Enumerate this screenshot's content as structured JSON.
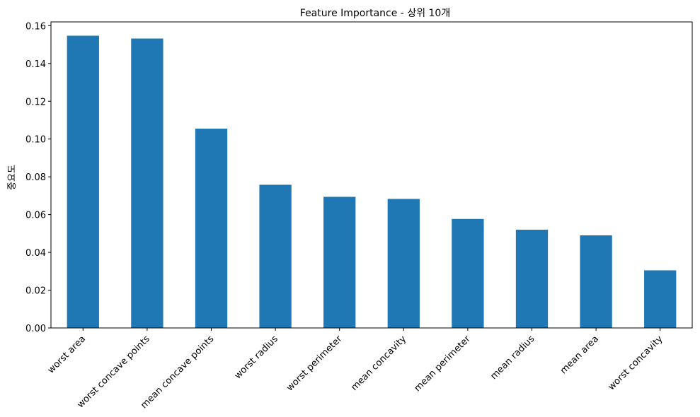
{
  "chart_data": {
    "type": "bar",
    "title": "Feature Importance - 상위 10개",
    "xlabel": "",
    "ylabel": "중요도",
    "categories": [
      "worst area",
      "worst concave points",
      "mean concave points",
      "worst radius",
      "worst perimeter",
      "mean concavity",
      "mean perimeter",
      "mean radius",
      "mean area",
      "worst concavity"
    ],
    "values": [
      0.1547,
      0.1532,
      0.1055,
      0.0758,
      0.0694,
      0.0683,
      0.0577,
      0.052,
      0.049,
      0.0305
    ],
    "ylim": [
      0,
      0.162
    ],
    "yticks": [
      "0.00",
      "0.02",
      "0.04",
      "0.06",
      "0.08",
      "0.10",
      "0.12",
      "0.14",
      "0.16"
    ],
    "grid": false,
    "bar_color": "#1f77b4"
  }
}
